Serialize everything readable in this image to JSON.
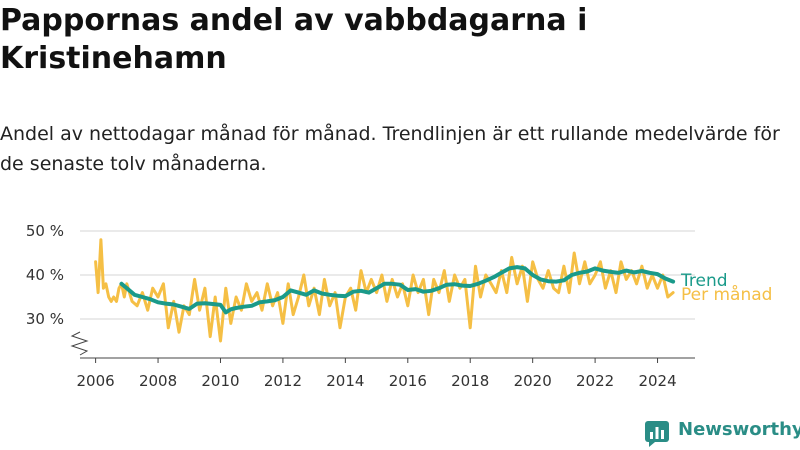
{
  "title": "Pappornas andel av vabbdagarna i Kristinehamn",
  "subtitle": "Andel av nettodagar månad för månad. Trendlinjen är ett rullande medelvärde för de senaste tolv månaderna.",
  "brand": {
    "name": "Newsworthy",
    "color": "#2a8d86"
  },
  "chart_data": {
    "type": "line",
    "title": "Pappornas andel av vabbdagarna i Kristinehamn",
    "xlabel": "",
    "ylabel": "",
    "xlim": [
      2005.5,
      2025.2
    ],
    "ylim": [
      20,
      50
    ],
    "y_axis_broken": true,
    "x_ticks": [
      2006,
      2008,
      2010,
      2012,
      2014,
      2016,
      2018,
      2020,
      2022,
      2024
    ],
    "x_tick_labels": [
      "2006",
      "2008",
      "2010",
      "2012",
      "2014",
      "2016",
      "2018",
      "2020",
      "2022",
      "2024"
    ],
    "y_ticks": [
      30,
      40,
      50
    ],
    "y_tick_labels": [
      "30 %",
      "40 %",
      "50 %"
    ],
    "grid": true,
    "legend": "direct labels at right end of lines",
    "series": [
      {
        "name": "Per månad",
        "color": "#f5bf45",
        "x": [
          2006.0,
          2006.08,
          2006.17,
          2006.25,
          2006.33,
          2006.42,
          2006.5,
          2006.58,
          2006.67,
          2006.75,
          2006.83,
          2006.92,
          2007.0,
          2007.17,
          2007.33,
          2007.5,
          2007.67,
          2007.83,
          2008.0,
          2008.17,
          2008.33,
          2008.5,
          2008.67,
          2008.83,
          2009.0,
          2009.17,
          2009.33,
          2009.5,
          2009.67,
          2009.83,
          2010.0,
          2010.17,
          2010.33,
          2010.5,
          2010.67,
          2010.83,
          2011.0,
          2011.17,
          2011.33,
          2011.5,
          2011.67,
          2011.83,
          2012.0,
          2012.17,
          2012.33,
          2012.5,
          2012.67,
          2012.83,
          2013.0,
          2013.17,
          2013.33,
          2013.5,
          2013.67,
          2013.83,
          2014.0,
          2014.17,
          2014.33,
          2014.5,
          2014.67,
          2014.83,
          2015.0,
          2015.17,
          2015.33,
          2015.5,
          2015.67,
          2015.83,
          2016.0,
          2016.17,
          2016.33,
          2016.5,
          2016.67,
          2016.83,
          2017.0,
          2017.17,
          2017.33,
          2017.5,
          2017.67,
          2017.83,
          2018.0,
          2018.17,
          2018.33,
          2018.5,
          2018.67,
          2018.83,
          2019.0,
          2019.17,
          2019.33,
          2019.5,
          2019.67,
          2019.83,
          2020.0,
          2020.17,
          2020.33,
          2020.5,
          2020.67,
          2020.83,
          2021.0,
          2021.17,
          2021.33,
          2021.5,
          2021.67,
          2021.83,
          2022.0,
          2022.17,
          2022.33,
          2022.5,
          2022.67,
          2022.83,
          2023.0,
          2023.17,
          2023.33,
          2023.5,
          2023.67,
          2023.83,
          2024.0,
          2024.17,
          2024.33,
          2024.5
        ],
        "values": [
          43,
          36,
          48,
          37,
          38,
          35,
          34,
          35,
          34,
          37,
          38,
          35,
          38,
          34,
          33,
          36,
          32,
          37,
          35,
          38,
          28,
          34,
          27,
          33,
          31,
          39,
          32,
          37,
          26,
          35,
          25,
          37,
          29,
          35,
          32,
          38,
          34,
          36,
          32,
          38,
          33,
          36,
          29,
          38,
          31,
          35,
          40,
          33,
          37,
          31,
          39,
          33,
          36,
          28,
          35,
          37,
          32,
          41,
          36,
          39,
          36,
          40,
          34,
          39,
          35,
          38,
          33,
          40,
          36,
          39,
          31,
          39,
          36,
          41,
          34,
          40,
          37,
          39,
          28,
          42,
          35,
          40,
          38,
          36,
          41,
          36,
          44,
          38,
          42,
          34,
          43,
          39,
          37,
          41,
          37,
          36,
          42,
          36,
          45,
          38,
          43,
          38,
          40,
          43,
          37,
          41,
          36,
          43,
          39,
          41,
          38,
          42,
          37,
          40,
          37,
          40,
          35,
          36
        ]
      },
      {
        "name": "Trend",
        "color": "#1a9a8a",
        "x": [
          2006.83,
          2007.0,
          2007.25,
          2007.5,
          2007.75,
          2008.0,
          2008.25,
          2008.5,
          2008.75,
          2009.0,
          2009.25,
          2009.5,
          2009.75,
          2010.0,
          2010.17,
          2010.33,
          2010.5,
          2010.75,
          2011.0,
          2011.25,
          2011.5,
          2011.75,
          2012.0,
          2012.25,
          2012.5,
          2012.75,
          2013.0,
          2013.25,
          2013.5,
          2013.75,
          2014.0,
          2014.25,
          2014.5,
          2014.75,
          2015.0,
          2015.25,
          2015.5,
          2015.75,
          2016.0,
          2016.25,
          2016.5,
          2016.75,
          2017.0,
          2017.25,
          2017.5,
          2017.75,
          2018.0,
          2018.25,
          2018.5,
          2018.75,
          2019.0,
          2019.25,
          2019.5,
          2019.75,
          2020.0,
          2020.25,
          2020.5,
          2020.75,
          2021.0,
          2021.25,
          2021.5,
          2021.75,
          2022.0,
          2022.25,
          2022.5,
          2022.75,
          2023.0,
          2023.25,
          2023.5,
          2023.75,
          2024.0,
          2024.25,
          2024.5
        ],
        "values": [
          38,
          37,
          35.5,
          35,
          34.5,
          33.8,
          33.5,
          33.3,
          32.8,
          32.3,
          33.5,
          33.6,
          33.4,
          33.2,
          31.5,
          32.2,
          32.5,
          32.8,
          33,
          33.8,
          34,
          34.3,
          35,
          36.5,
          36,
          35.5,
          36.5,
          35.8,
          35.5,
          35.3,
          35.2,
          36.2,
          36.4,
          36,
          37,
          38,
          38,
          37.8,
          36.6,
          36.8,
          36.2,
          36.4,
          37,
          37.8,
          37.9,
          37.6,
          37.5,
          38,
          38.7,
          39.5,
          40.5,
          41.5,
          41.8,
          41.5,
          40,
          39,
          38.6,
          38.5,
          38.8,
          40,
          40.5,
          40.8,
          41.5,
          41,
          40.7,
          40.5,
          41,
          40.6,
          40.9,
          40.5,
          40.2,
          39.2,
          38.5
        ]
      }
    ]
  }
}
